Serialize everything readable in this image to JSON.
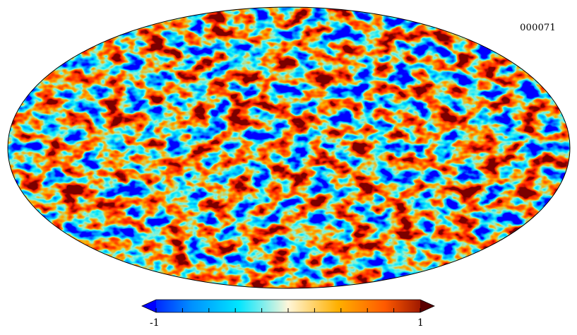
{
  "chart_data": {
    "type": "heatmap",
    "projection": "mollweide",
    "map_label": "000071",
    "colorbar": {
      "min_label": "-1",
      "max_label": "1",
      "range": [
        -1,
        1
      ],
      "colors": [
        "#0000ff",
        "#0090ff",
        "#00e5ff",
        "#fff6d9",
        "#ffb000",
        "#ff5a00",
        "#7a0000"
      ],
      "tick_count": 11,
      "extend": "both"
    }
  }
}
